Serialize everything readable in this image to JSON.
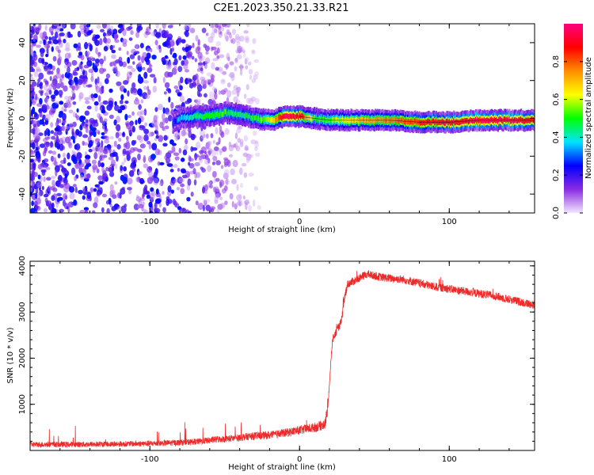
{
  "title": "C2E1.2023.350.21.33.R21",
  "chart_data": [
    {
      "type": "heatmap",
      "xlabel": "Height of straight line (km)",
      "ylabel": "Frequency (Hz)",
      "xlim": [
        -180,
        157
      ],
      "ylim": [
        -50,
        50
      ],
      "xticks": [
        -100,
        0,
        100
      ],
      "yticks": [
        -40,
        -20,
        0,
        20,
        40
      ],
      "colorbar": {
        "label": "Normalized spectral amplitude",
        "range": [
          0.0,
          1.0
        ],
        "ticks": [
          "0.0",
          "0.2",
          "0.4",
          "0.6",
          "0.8"
        ],
        "tick_values": [
          0.0,
          0.2,
          0.4,
          0.6,
          0.8
        ],
        "colors": [
          "#f2e6ff",
          "#8a2be2",
          "#0000ff",
          "#00e5ff",
          "#00ff00",
          "#ffff00",
          "#ff8c00",
          "#ff0000",
          "#ff007f"
        ]
      },
      "ridge": {
        "x": [
          -85,
          -80,
          -70,
          -60,
          -50,
          -40,
          -30,
          -20,
          -10,
          0,
          10,
          20,
          40,
          60,
          80,
          100,
          120,
          157
        ],
        "y": [
          -2,
          0,
          1,
          1,
          3,
          2,
          0,
          -1,
          1,
          1,
          0,
          -1,
          -1,
          -1,
          -2,
          -2,
          -1,
          -1
        ],
        "amplitude": [
          0.25,
          0.35,
          0.45,
          0.5,
          0.5,
          0.45,
          0.5,
          0.6,
          0.95,
          0.9,
          0.5,
          0.55,
          0.7,
          0.75,
          0.85,
          0.9,
          0.95,
          0.9
        ]
      },
      "noise_region": {
        "x_from": -180,
        "x_to": -40,
        "ylim": [
          -50,
          50
        ]
      }
    },
    {
      "type": "line",
      "xlabel": "Height of straight line (km)",
      "ylabel": "SNR (10 * v/v)",
      "xlim": [
        -180,
        157
      ],
      "ylim": [
        0,
        4100
      ],
      "xticks": [
        -100,
        0,
        100
      ],
      "yticks": [
        1000,
        2000,
        3000,
        4000
      ],
      "color": "#ee2b2b",
      "x": [
        -180,
        -150,
        -120,
        -100,
        -80,
        -65,
        -55,
        -45,
        -35,
        -28,
        -20,
        -10,
        0,
        10,
        17,
        19,
        22,
        25,
        28,
        30,
        32,
        35,
        45,
        55,
        70,
        90,
        110,
        130,
        150,
        157
      ],
      "y": [
        130,
        130,
        140,
        150,
        170,
        200,
        240,
        260,
        300,
        320,
        330,
        380,
        440,
        500,
        560,
        1000,
        2400,
        2600,
        2800,
        3300,
        3600,
        3650,
        3820,
        3750,
        3700,
        3550,
        3450,
        3350,
        3200,
        3150
      ]
    }
  ]
}
